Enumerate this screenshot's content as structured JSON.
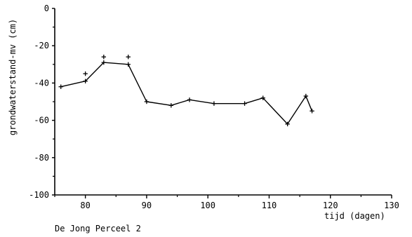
{
  "chart_data": {
    "type": "line",
    "title": "",
    "xlabel": "tijd (dagen)",
    "ylabel": "grondwaterstand-mv (cm)",
    "caption": "De Jong Perceel 2",
    "xlim": [
      75,
      130
    ],
    "ylim": [
      -100,
      0
    ],
    "xticks": [
      80,
      90,
      100,
      110,
      120,
      130
    ],
    "yticks": [
      0,
      -20,
      -40,
      -60,
      -80,
      -100
    ],
    "grid": false,
    "series": [
      {
        "type": "line",
        "x": [
          76,
          80,
          83,
          87,
          90,
          94,
          97,
          101,
          106,
          109,
          113,
          116,
          117
        ],
        "y": [
          -42,
          -39,
          -29,
          -30,
          -50,
          -52,
          -49,
          -51,
          -51,
          -48,
          -62,
          -47,
          -55
        ]
      },
      {
        "type": "scatter",
        "x": [
          80,
          83,
          87
        ],
        "y": [
          -35,
          -26,
          -26
        ]
      }
    ],
    "colors": {
      "line": "#000000",
      "axis": "#000000"
    }
  }
}
